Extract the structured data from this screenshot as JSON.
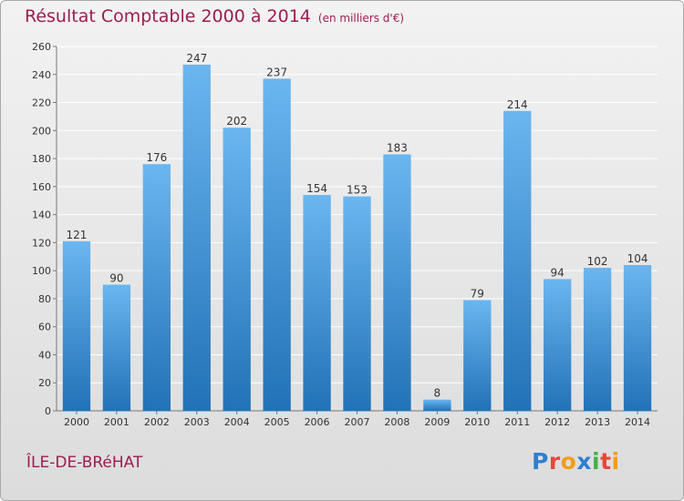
{
  "title": {
    "main": "Résultat Comptable 2000 à 2014",
    "unit": "(en milliers d'€)"
  },
  "commune": "ÎLE-DE-BRéHAT",
  "logo": {
    "text": "Proxiti",
    "letter_colors": [
      "#2f7fd0",
      "#e8463a",
      "#f39c1e",
      "#2f7fd0",
      "#43b04a",
      "#e8463a",
      "#f39c1e"
    ]
  },
  "colors": {
    "bar_top": "#6bb6f0",
    "bar_bottom": "#2272b8",
    "title": "#9b1e4f",
    "grid": "#ffffff"
  },
  "chart_data": {
    "type": "bar",
    "categories": [
      "2000",
      "2001",
      "2002",
      "2003",
      "2004",
      "2005",
      "2006",
      "2007",
      "2008",
      "2009",
      "2010",
      "2011",
      "2012",
      "2013",
      "2014"
    ],
    "values": [
      121,
      90,
      176,
      247,
      202,
      237,
      154,
      153,
      183,
      8,
      79,
      214,
      94,
      102,
      104
    ],
    "title": "Résultat Comptable 2000 à 2014",
    "xlabel": "",
    "ylabel": "",
    "ylim": [
      0,
      260
    ],
    "yticks": [
      0,
      20,
      40,
      60,
      80,
      100,
      120,
      140,
      160,
      180,
      200,
      220,
      240,
      260
    ],
    "grid": true,
    "data_labels": true
  }
}
